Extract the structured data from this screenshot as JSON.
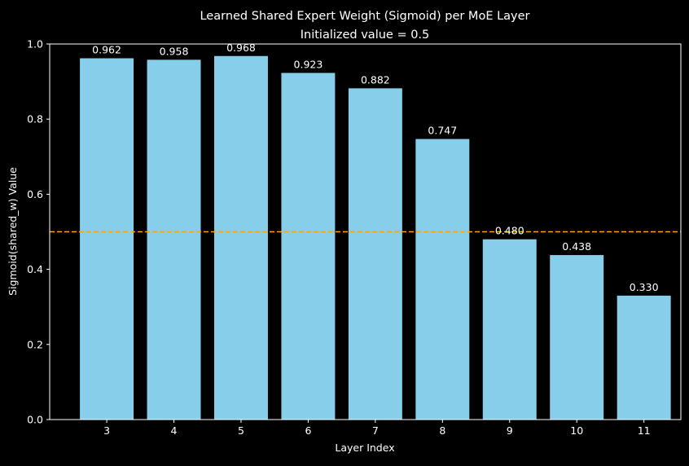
{
  "chart_data": {
    "type": "bar",
    "title": "Learned Shared Expert Weight (Sigmoid) per MoE Layer",
    "subtitle": "Initialized value = 0.5",
    "xlabel": "Layer Index",
    "ylabel": "Sigmoid(shared_w) Value",
    "categories": [
      "3",
      "4",
      "5",
      "6",
      "7",
      "8",
      "9",
      "10",
      "11"
    ],
    "values": [
      0.962,
      0.958,
      0.968,
      0.923,
      0.882,
      0.747,
      0.48,
      0.438,
      0.33
    ],
    "value_labels": [
      "0.962",
      "0.958",
      "0.968",
      "0.923",
      "0.882",
      "0.747",
      "0.480",
      "0.438",
      "0.330"
    ],
    "ylim": [
      0.0,
      1.0
    ],
    "yticks": [
      "0.0",
      "0.2",
      "0.4",
      "0.6",
      "0.8",
      "1.0"
    ],
    "reference_line": {
      "y": 0.5,
      "style": "dashed",
      "color": "#FFA500"
    },
    "grid": false,
    "colors": {
      "bar": "#87CEEB",
      "background": "#000000",
      "text": "#FFFFFF",
      "axis": "#FFFFFF",
      "reference_line": "#FFA500"
    }
  }
}
